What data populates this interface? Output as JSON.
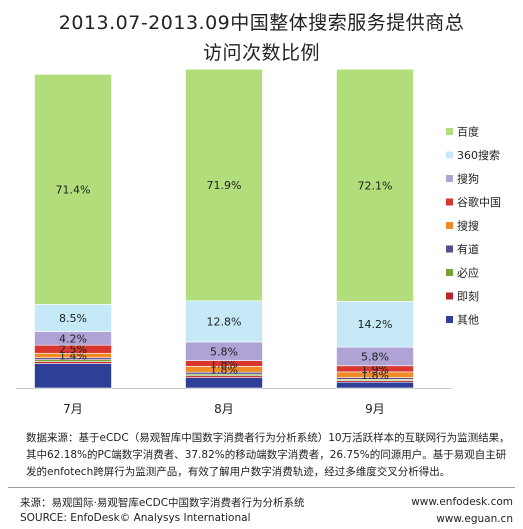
{
  "chart_data": {
    "type": "bar",
    "stacked": true,
    "percent": true,
    "title": "2013.07-2013.09中国整体搜索服务提供商总访问次数比例",
    "title_lines": [
      "2013.07-2013.09中国整体搜索服务提供商总",
      "访问次数比例"
    ],
    "categories": [
      "7月",
      "8月",
      "9月"
    ],
    "ylim": [
      0,
      100
    ],
    "legend_position": "right",
    "series": [
      {
        "name": "其他",
        "color": "#2E3F97",
        "values": [
          7.6,
          3.2,
          1.8
        ],
        "labels": [
          "",
          "",
          ""
        ]
      },
      {
        "name": "即刻",
        "color": "#B5252B",
        "values": [
          0.6,
          0.6,
          0.5
        ],
        "labels": [
          "",
          "",
          ""
        ]
      },
      {
        "name": "必应",
        "color": "#78A22F",
        "values": [
          0.6,
          0.5,
          0.4
        ],
        "labels": [
          "",
          "",
          ""
        ]
      },
      {
        "name": "有道",
        "color": "#5B4A8C",
        "values": [
          0.6,
          0.6,
          0.5
        ],
        "labels": [
          "",
          "",
          ""
        ]
      },
      {
        "name": "搜搜",
        "color": "#F08A24",
        "values": [
          1.4,
          1.8,
          1.8
        ],
        "labels": [
          "1.4%",
          "1.8%",
          "1.8%"
        ]
      },
      {
        "name": "谷歌中国",
        "color": "#D8362F",
        "values": [
          2.5,
          1.8,
          1.9
        ],
        "labels": [
          "2.5%",
          "1.8%",
          "1.9%"
        ]
      },
      {
        "name": "搜狗",
        "color": "#AFA3D6",
        "values": [
          4.2,
          5.8,
          5.8
        ],
        "labels": [
          "4.2%",
          "5.8%",
          "5.8%"
        ]
      },
      {
        "name": "360搜索",
        "color": "#C5E9F7",
        "values": [
          8.5,
          12.8,
          14.2
        ],
        "labels": [
          "8.5%",
          "12.8%",
          "14.2%"
        ]
      },
      {
        "name": "百度",
        "color": "#B1DD7A",
        "values": [
          71.4,
          71.9,
          72.1
        ],
        "labels": [
          "71.4%",
          "71.9%",
          "72.1%"
        ]
      }
    ],
    "legend_order": [
      "百度",
      "360搜索",
      "搜狗",
      "谷歌中国",
      "搜搜",
      "有道",
      "必应",
      "即刻",
      "其他"
    ]
  },
  "note_text": "数据来源：基于eCDC（易观智库中国数字消费者行为分析系统）10万活跃样本的互联网行为监测结果，其中62.18%的PC端数字消费者、37.82%的移动端数字消费者，26.75%的同源用户。基于易观自主研发的enfotech跨屏行为监测产品，有效了解用户数字消费轨迹，经过多维度交叉分析得出。",
  "footer": {
    "source_cn": "来源：易观国际·易观智库eCDC中国数字消费者行为分析系统",
    "source_en": "SOURCE: EnfoDesk© Analysys International",
    "url_1": "www.enfodesk.com",
    "url_2": "www.eguan.cn"
  }
}
